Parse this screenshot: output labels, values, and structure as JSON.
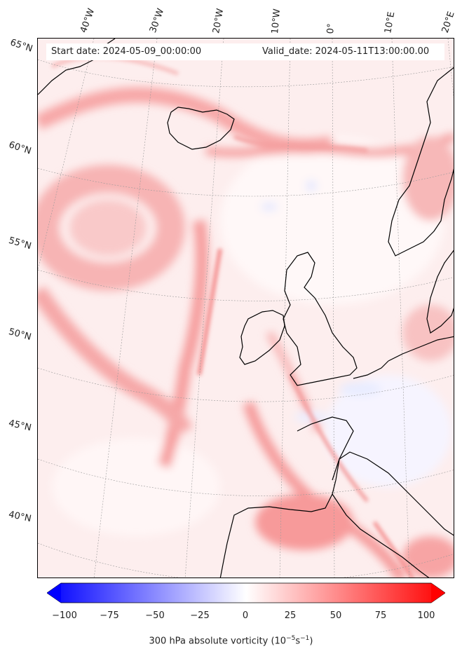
{
  "map": {
    "start_date": "Start date: 2024-05-09_00:00:00",
    "valid_date": "Valid_date: 2024-05-11T13:00:00.00",
    "lon_labels": [
      "40°W",
      "30°W",
      "20°W",
      "10°W",
      "0°",
      "10°E",
      "20°E"
    ],
    "lat_labels": [
      "65°N",
      "60°N",
      "55°N",
      "50°N",
      "45°N",
      "40°N"
    ],
    "colorbar": {
      "title_prefix": "300 hPa absolute vorticity (10",
      "title_exp1": "−5",
      "title_mid": "s",
      "title_exp2": "−1",
      "title_suffix": ")",
      "ticks": [
        "−100",
        "−75",
        "−50",
        "−25",
        "0",
        "25",
        "50",
        "75",
        "100"
      ],
      "min": -100,
      "max": 100,
      "low_color": "#0000ff",
      "mid_color": "#ffffff",
      "high_color": "#ff0000",
      "extend": "both"
    },
    "colors": {
      "background_field": "#fde8e8",
      "coastline": "#000000",
      "gridline": "#999999"
    }
  }
}
